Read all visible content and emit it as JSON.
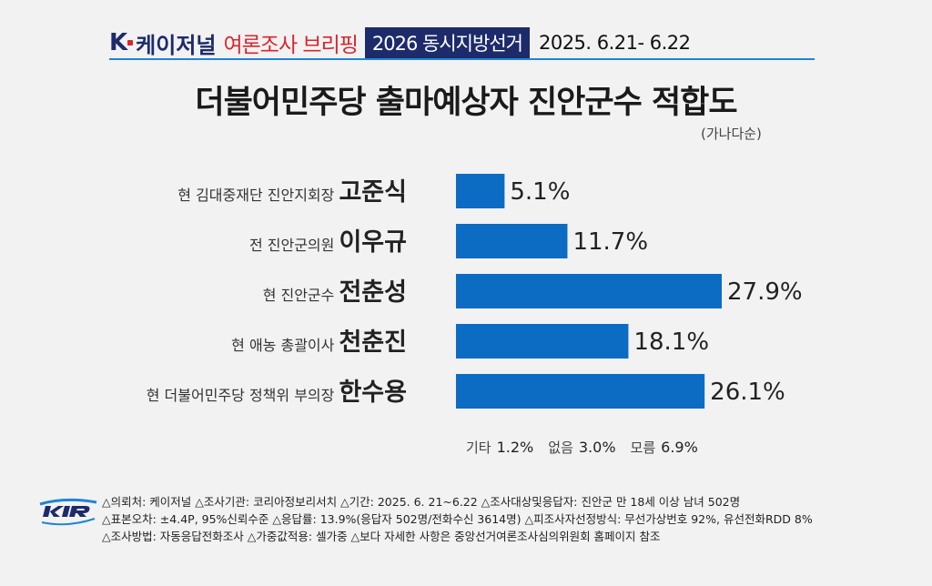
{
  "header": {
    "logo_k": "K",
    "logo_name": "케이저널",
    "brief_label": "여론조사 브리핑",
    "election_label": "2026 동시지방선거",
    "period": "2025. 6.21- 6.22"
  },
  "title": "더불어민주당 출마예상자 진안군수 적합도",
  "sort_note": "(가나다순)",
  "chart_data": {
    "type": "bar",
    "orientation": "horizontal",
    "categories": [
      "고준식",
      "이우규",
      "전춘성",
      "천춘진",
      "한수용"
    ],
    "category_prefixes": [
      "현 김대중재단 진안지회장",
      "전 진안군의원",
      "현 진안군수",
      "현 애농 총괄이사",
      "현 더불어민주당 정책위 부의장"
    ],
    "values": [
      5.1,
      11.7,
      27.9,
      18.1,
      26.1
    ],
    "value_labels": [
      "5.1%",
      "11.7%",
      "27.9%",
      "18.1%",
      "26.1%"
    ],
    "unit": "%",
    "xlim": [
      0,
      30
    ],
    "bar_color": "#0c6cc4",
    "grid": false,
    "legend": "none"
  },
  "others": [
    {
      "label": "기타",
      "value": "1.2%"
    },
    {
      "label": "없음",
      "value": "3.0%"
    },
    {
      "label": "모름",
      "value": "6.9%"
    }
  ],
  "footer": {
    "logo_icon": "kir-logo",
    "lines": [
      "△의뢰처: 케이저널 △조사기관: 코리아정보리서치 △기간: 2025. 6. 21~6.22 △조사대상및응답자: 진안군 만 18세 이상 남녀 502명",
      "△표본오차: ±4.4P, 95%신뢰수준 △응답률: 13.9%(응답자 502명/전화수신 3614명) △피조사자선정방식: 무선가상번호 92%, 유선전화RDD 8%",
      "△조사방법: 자동응답전화조사 △가중값적용: 셀가중 △보다 자세한 사항은 중앙선거여론조사심의위원회 홈페이지 참조"
    ]
  },
  "colors": {
    "accent_red": "#d8262d",
    "navy": "#1d2b6b",
    "bar_blue": "#0c6cc4",
    "rule_blue": "#1f86d1"
  }
}
